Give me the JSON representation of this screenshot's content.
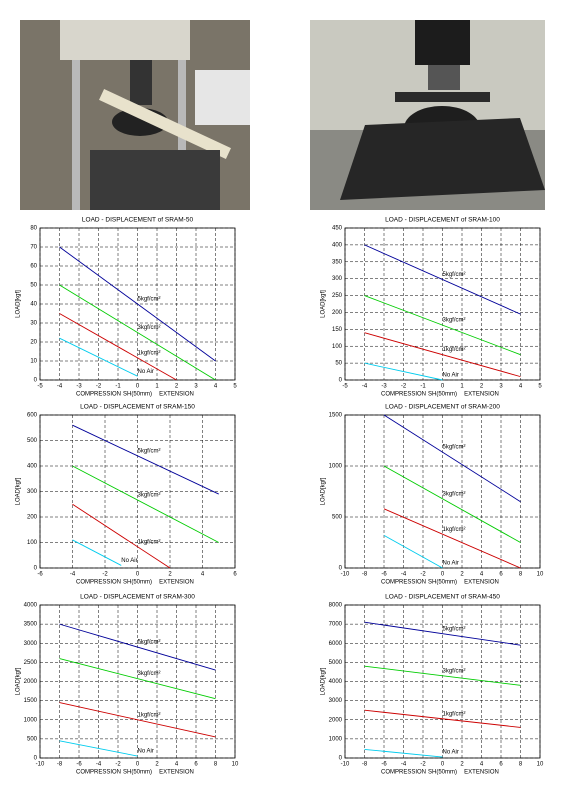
{
  "chart_data": [
    {
      "type": "line",
      "title": "LOAD - DISPLACEMENT of SRAM-50",
      "xlabel_left": "COMPRESSION",
      "xlabel": "SH(50mm)",
      "xlabel_right": "EXTENSION",
      "ylabel": "LOAD[kgf]",
      "xlim": [
        -5,
        5
      ],
      "xticks": [
        -5,
        -4,
        -3,
        -2,
        -1,
        0,
        1,
        2,
        3,
        4,
        5
      ],
      "ylim": [
        0,
        80
      ],
      "yticks": [
        0,
        10,
        20,
        30,
        40,
        50,
        60,
        70,
        80
      ],
      "grid": true,
      "series": [
        {
          "name": "5kgf/cm²",
          "color": "#000099",
          "x": [
            -4,
            4
          ],
          "values": [
            70,
            10
          ]
        },
        {
          "name": "3kgf/cm²",
          "color": "#00cc00",
          "x": [
            -4,
            4
          ],
          "values": [
            50,
            0
          ]
        },
        {
          "name": "1kgf/cm²",
          "color": "#cc0000",
          "x": [
            -4,
            2
          ],
          "values": [
            35,
            0
          ]
        },
        {
          "name": "No Air",
          "color": "#00ccee",
          "x": [
            -4,
            0
          ],
          "values": [
            22,
            2
          ]
        }
      ]
    },
    {
      "type": "line",
      "title": "LOAD - DISPLACEMENT of SRAM-100",
      "xlabel_left": "COMPRESSION",
      "xlabel": "SH(50mm)",
      "xlabel_right": "EXTENSION",
      "ylabel": "LOAD[kgf]",
      "xlim": [
        -5,
        5
      ],
      "xticks": [
        -5,
        -4,
        -3,
        -2,
        -1,
        0,
        1,
        2,
        3,
        4,
        5
      ],
      "ylim": [
        0,
        450
      ],
      "yticks": [
        0,
        50,
        100,
        150,
        200,
        250,
        300,
        350,
        400,
        450
      ],
      "grid": true,
      "series": [
        {
          "name": "5kgf/cm²",
          "color": "#000099",
          "x": [
            -4,
            4
          ],
          "values": [
            400,
            195
          ]
        },
        {
          "name": "3kgf/cm²",
          "color": "#00cc00",
          "x": [
            -4,
            4
          ],
          "values": [
            250,
            75
          ]
        },
        {
          "name": "1kgf/cm²",
          "color": "#cc0000",
          "x": [
            -4,
            4
          ],
          "values": [
            140,
            10
          ]
        },
        {
          "name": "No Air",
          "color": "#00ccee",
          "x": [
            -4,
            0
          ],
          "values": [
            50,
            0
          ]
        }
      ]
    },
    {
      "type": "line",
      "title": "LOAD - DISPLACEMENT of SRAM-150",
      "xlabel_left": "COMPRESSION",
      "xlabel": "SH(50mm)",
      "xlabel_right": "EXTENSION",
      "ylabel": "LOAD[kgf]",
      "xlim": [
        -6,
        6
      ],
      "xticks": [
        -6,
        -4,
        -2,
        0,
        2,
        4,
        6
      ],
      "ylim": [
        0,
        600
      ],
      "yticks": [
        0,
        100,
        200,
        300,
        400,
        500,
        600
      ],
      "grid": true,
      "series": [
        {
          "name": "5kgf/cm²",
          "color": "#000099",
          "x": [
            -4,
            5
          ],
          "values": [
            560,
            290
          ]
        },
        {
          "name": "3kgf/cm²",
          "color": "#00cc00",
          "x": [
            -4,
            5
          ],
          "values": [
            400,
            100
          ]
        },
        {
          "name": "1kgf/cm²",
          "color": "#cc0000",
          "x": [
            -4,
            2
          ],
          "values": [
            250,
            0
          ]
        },
        {
          "name": "No Air",
          "color": "#00ccee",
          "x": [
            -4,
            -1
          ],
          "values": [
            110,
            10
          ]
        }
      ]
    },
    {
      "type": "line",
      "title": "LOAD - DISPLACEMENT of SRAM-200",
      "xlabel_left": "COMPRESSION",
      "xlabel": "SH(50mm)",
      "xlabel_right": "EXTENSION",
      "ylabel": "LOAD[kgf]",
      "xlim": [
        -10,
        10
      ],
      "xticks": [
        -10,
        -8,
        -6,
        -4,
        -2,
        0,
        2,
        4,
        6,
        8,
        10
      ],
      "ylim": [
        0,
        1500
      ],
      "yticks": [
        0,
        500,
        1000,
        1500
      ],
      "grid": true,
      "series": [
        {
          "name": "5kgf/cm²",
          "color": "#000099",
          "x": [
            -6,
            8
          ],
          "values": [
            1500,
            650
          ]
        },
        {
          "name": "3kgf/cm²",
          "color": "#00cc00",
          "x": [
            -6,
            8
          ],
          "values": [
            1000,
            250
          ]
        },
        {
          "name": "1kgf/cm²",
          "color": "#cc0000",
          "x": [
            -6,
            8
          ],
          "values": [
            580,
            0
          ]
        },
        {
          "name": "No Air",
          "color": "#00ccee",
          "x": [
            -6,
            0
          ],
          "values": [
            320,
            0
          ]
        }
      ]
    },
    {
      "type": "line",
      "title": "LOAD - DISPLACEMENT of SRAM-300",
      "xlabel_left": "COMPRESSION",
      "xlabel": "SH(50mm)",
      "xlabel_right": "EXTENSION",
      "ylabel": "LOAD[kgf]",
      "xlim": [
        -10,
        10
      ],
      "xticks": [
        -10,
        -8,
        -6,
        -4,
        -2,
        0,
        2,
        4,
        6,
        8,
        10
      ],
      "ylim": [
        0,
        4000
      ],
      "yticks": [
        0,
        500,
        1000,
        1500,
        2000,
        2500,
        3000,
        3500,
        4000
      ],
      "grid": true,
      "series": [
        {
          "name": "5kgf/cm²",
          "color": "#000099",
          "x": [
            -8,
            8
          ],
          "values": [
            3500,
            2300
          ]
        },
        {
          "name": "3kgf/cm²",
          "color": "#00cc00",
          "x": [
            -8,
            8
          ],
          "values": [
            2600,
            1550
          ]
        },
        {
          "name": "1kgf/cm²",
          "color": "#cc0000",
          "x": [
            -8,
            8
          ],
          "values": [
            1450,
            550
          ]
        },
        {
          "name": "No Air",
          "color": "#00ccee",
          "x": [
            -8,
            0
          ],
          "values": [
            450,
            50
          ]
        }
      ]
    },
    {
      "type": "line",
      "title": "LOAD - DISPLACEMENT of SRAM-450",
      "xlabel_left": "COMPRESSION",
      "xlabel": "SH(50mm)",
      "xlabel_right": "EXTENSION",
      "ylabel": "LOAD[kgf]",
      "xlim": [
        -10,
        10
      ],
      "xticks": [
        -10,
        -8,
        -6,
        -4,
        -2,
        0,
        2,
        4,
        6,
        8,
        10
      ],
      "ylim": [
        0,
        8000
      ],
      "yticks": [
        0,
        1000,
        2000,
        3000,
        4000,
        5000,
        6000,
        7000,
        8000
      ],
      "grid": true,
      "series": [
        {
          "name": "5kgf/cm²",
          "color": "#000099",
          "x": [
            -8,
            8
          ],
          "values": [
            7100,
            5900
          ]
        },
        {
          "name": "3kgf/cm²",
          "color": "#00cc00",
          "x": [
            -8,
            8
          ],
          "values": [
            4800,
            3800
          ]
        },
        {
          "name": "1kgf/cm²",
          "color": "#cc0000",
          "x": [
            -8,
            8
          ],
          "values": [
            2500,
            1600
          ]
        },
        {
          "name": "No Air",
          "color": "#00ccee",
          "x": [
            -8,
            0
          ],
          "values": [
            450,
            50
          ]
        }
      ]
    }
  ]
}
